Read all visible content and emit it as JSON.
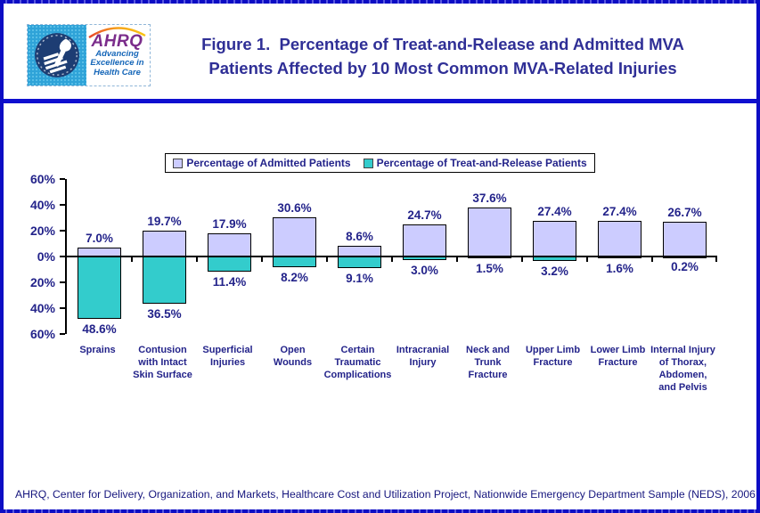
{
  "header": {
    "logo": {
      "ahrq_text": "AHRQ",
      "tagline_line1": "Advancing",
      "tagline_line2": "Excellence in",
      "tagline_line3": "Health Care"
    },
    "title_line1": "Figure 1.  Percentage of Treat-and-Release and Admitted MVA",
    "title_line2": "Patients Affected by 10 Most Common MVA-Related Injuries"
  },
  "footer": {
    "source": "AHRQ, Center for Delivery, Organization, and Markets, Healthcare Cost and Utilization Project, Nationwide Emergency Department Sample (NEDS), 2006"
  },
  "chart_data": {
    "type": "bar",
    "orientation": "diverging-vertical",
    "title": "Figure 1. Percentage of Treat-and-Release and Admitted MVA Patients Affected by 10 Most Common MVA-Related Injuries",
    "categories": [
      "Sprains",
      "Contusion with Intact Skin Surface",
      "Superficial Injuries",
      "Open Wounds",
      "Certain Traumatic Complications",
      "Intracranial Injury",
      "Neck and Trunk Fracture",
      "Upper Limb Fracture",
      "Lower Limb Fracture",
      "Internal Injury of Thorax, Abdomen, and Pelvis"
    ],
    "series": [
      {
        "name": "Percentage of Admitted Patients",
        "direction": "up",
        "color": "#ccccff",
        "values": [
          7.0,
          19.7,
          17.9,
          30.6,
          8.6,
          24.7,
          37.6,
          27.4,
          27.4,
          26.7
        ],
        "labels": [
          "7.0%",
          "19.7%",
          "17.9%",
          "30.6%",
          "8.6%",
          "24.7%",
          "37.6%",
          "27.4%",
          "27.4%",
          "26.7%"
        ]
      },
      {
        "name": "Percentage of Treat-and-Release Patients",
        "direction": "down",
        "color": "#33cccc",
        "values": [
          48.6,
          36.5,
          11.4,
          8.2,
          9.1,
          3.0,
          1.5,
          3.2,
          1.6,
          0.2
        ],
        "labels": [
          "48.6%",
          "36.5%",
          "11.4%",
          "8.2%",
          "9.1%",
          "3.0%",
          "1.5%",
          "3.2%",
          "1.6%",
          "0.2%"
        ]
      }
    ],
    "y_axis": {
      "tick_labels": [
        "60%",
        "40%",
        "20%",
        "0%",
        "20%",
        "40%",
        "60%"
      ],
      "max": 60,
      "min": -60,
      "step": 20,
      "unit": "%"
    },
    "legend": [
      "Percentage of Admitted Patients",
      "Percentage of Treat-and-Release Patients"
    ],
    "legend_position": "top-center",
    "grid": false
  }
}
